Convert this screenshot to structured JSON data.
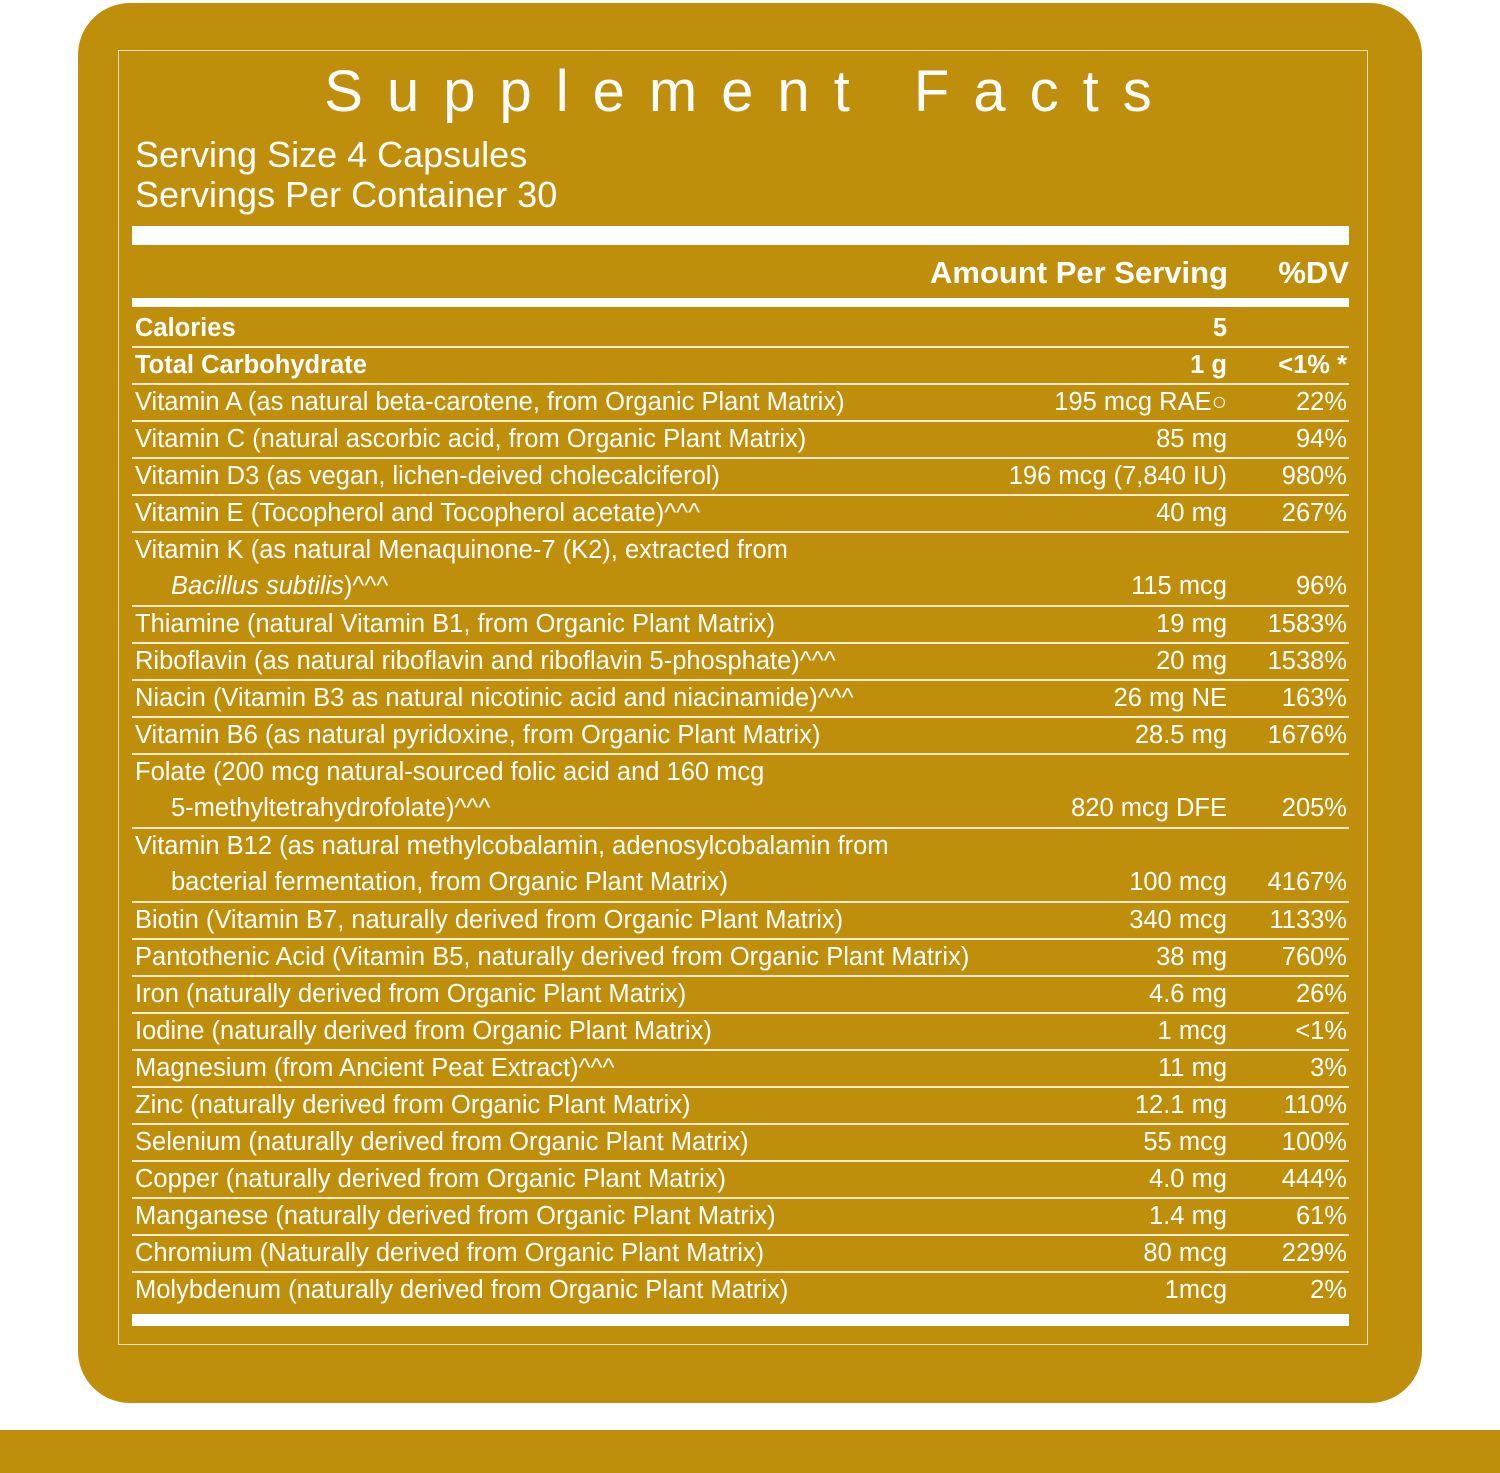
{
  "panel": {
    "title": "Supplement Facts",
    "serving_size": "Serving Size 4 Capsules",
    "servings_per_container": "Servings Per Container 30",
    "header_amount": "Amount Per Serving",
    "header_dv": "%DV",
    "colors": {
      "panel": "#bf8f0b",
      "text": "#ffffff",
      "rule": "#f6ead0"
    }
  },
  "rows": [
    {
      "name": "Calories",
      "amount": "5",
      "dv": "",
      "bold": true
    },
    {
      "name": "Total Carbohydrate",
      "amount": "1 g",
      "dv": "<1% *",
      "bold": true
    },
    {
      "name": "Vitamin A (as natural beta-carotene, from Organic Plant Matrix)",
      "amount": "195 mcg RAE○",
      "dv": "22%"
    },
    {
      "name": "Vitamin C (natural ascorbic acid, from Organic Plant Matrix)",
      "amount": "85 mg",
      "dv": "94%"
    },
    {
      "name": "Vitamin D3 (as vegan, lichen-deived cholecalciferol)",
      "amount": "196 mcg (7,840 IU)",
      "dv": "980%"
    },
    {
      "name": "Vitamin E (Tocopherol and Tocopherol acetate)^^^",
      "amount": "40 mg",
      "dv": "267%"
    },
    {
      "name": "Vitamin K (as natural Menaquinone-7 (K2), extracted from",
      "name_cont_italic": "Bacillus subtilis",
      "name_cont": ")^^^",
      "amount": "115 mcg",
      "dv": "96%"
    },
    {
      "name": "Thiamine (natural Vitamin B1, from Organic Plant Matrix)",
      "amount": "19 mg",
      "dv": "1583%"
    },
    {
      "name": "Riboflavin (as natural riboflavin and riboflavin 5-phosphate)^^^",
      "amount": "20 mg",
      "dv": "1538%"
    },
    {
      "name": "Niacin (Vitamin B3 as natural nicotinic acid and niacinamide)^^^",
      "amount": "26 mg NE",
      "dv": "163%"
    },
    {
      "name": "Vitamin B6 (as natural pyridoxine, from Organic Plant Matrix)",
      "amount": "28.5 mg",
      "dv": "1676%"
    },
    {
      "name": "Folate (200 mcg natural-sourced folic acid and 160 mcg",
      "name_cont": "5-methyltetrahydrofolate)^^^",
      "amount": "820 mcg DFE",
      "dv": "205%"
    },
    {
      "name": "Vitamin B12 (as natural methylcobalamin, adenosylcobalamin from",
      "name_cont": "bacterial fermentation, from Organic Plant Matrix)",
      "amount": "100 mcg",
      "dv": "4167%"
    },
    {
      "name": "Biotin (Vitamin B7, naturally derived from Organic Plant Matrix)",
      "amount": "340 mcg",
      "dv": "1133%"
    },
    {
      "name": "Pantothenic Acid (Vitamin B5, naturally derived from Organic Plant Matrix)",
      "amount": "38 mg",
      "dv": "760%"
    },
    {
      "name": "Iron (naturally derived from Organic Plant Matrix)",
      "amount": "4.6 mg",
      "dv": "26%"
    },
    {
      "name": "Iodine (naturally derived from Organic Plant Matrix)",
      "amount": "1 mcg",
      "dv": "<1%"
    },
    {
      "name": "Magnesium (from Ancient Peat Extract)^^^",
      "amount": "11 mg",
      "dv": "3%"
    },
    {
      "name": "Zinc (naturally derived from Organic Plant Matrix)",
      "amount": "12.1 mg",
      "dv": "110%"
    },
    {
      "name": "Selenium (naturally derived from Organic Plant Matrix)",
      "amount": "55 mcg",
      "dv": "100%"
    },
    {
      "name": "Copper (naturally derived from Organic Plant Matrix)",
      "amount": "4.0 mg",
      "dv": "444%"
    },
    {
      "name": "Manganese (naturally derived from Organic Plant Matrix)",
      "amount": "1.4 mg",
      "dv": "61%"
    },
    {
      "name": "Chromium (Naturally derived from Organic Plant Matrix)",
      "amount": "80 mcg",
      "dv": "229%"
    },
    {
      "name": "Molybdenum (naturally derived from Organic Plant Matrix)",
      "amount": "1mcg",
      "dv": "2%"
    }
  ]
}
